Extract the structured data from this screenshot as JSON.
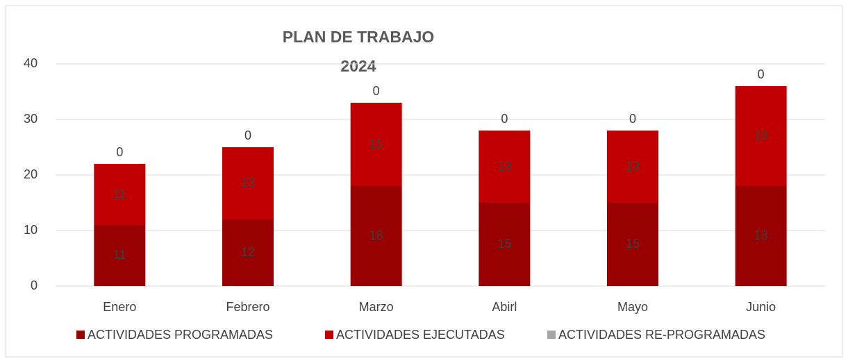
{
  "chart_data": {
    "type": "stacked_bar",
    "title": "PLAN DE TRABAJO",
    "subtitle": "2024",
    "categories": [
      "Enero",
      "Febrero",
      "Marzo",
      "Abirl",
      "Mayo",
      "Junio"
    ],
    "series": [
      {
        "name": "ACTIVIDADES PROGRAMADAS",
        "color": "#990000",
        "values": [
          11,
          12,
          18,
          15,
          15,
          18
        ]
      },
      {
        "name": "ACTIVIDADES EJECUTADAS",
        "color": "#c00000",
        "values": [
          11,
          13,
          15,
          13,
          13,
          18
        ]
      },
      {
        "name": "ACTIVIDADES RE-PROGRAMADAS",
        "color": "#a6a6a6",
        "values": [
          0,
          0,
          0,
          0,
          0,
          0
        ]
      }
    ],
    "ylim": [
      0,
      40
    ],
    "yticks": [
      0,
      10,
      20,
      30,
      40
    ],
    "grid": true,
    "legend": "bottom"
  }
}
